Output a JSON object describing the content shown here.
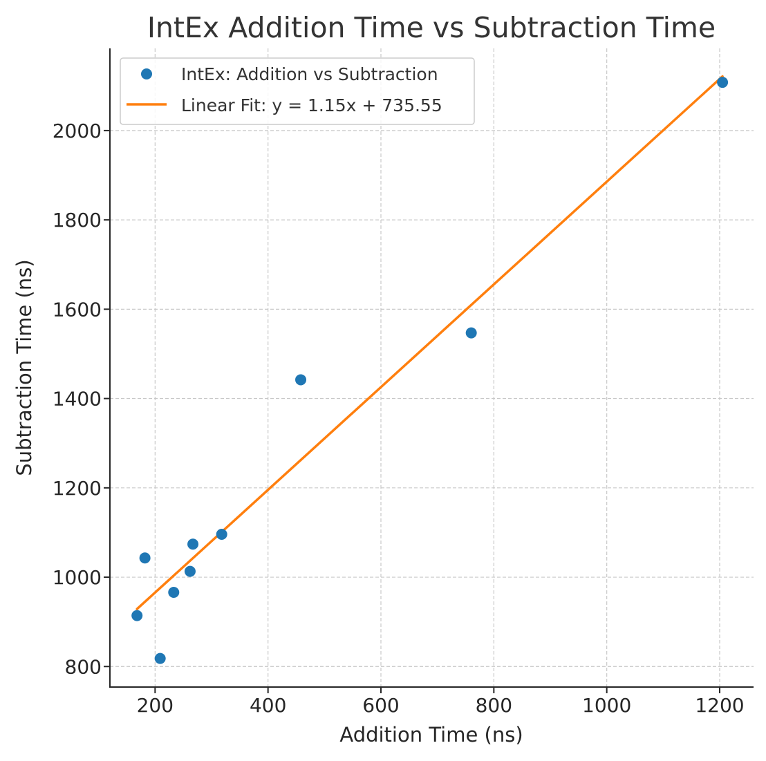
{
  "chart_data": {
    "type": "scatter",
    "title": "IntEx Addition Time vs Subtraction Time",
    "xlabel": "Addition Time (ns)",
    "ylabel": "Subtraction Time (ns)",
    "xlim": [
      120,
      1260
    ],
    "ylim": [
      754,
      2184
    ],
    "xticks": [
      200,
      400,
      600,
      800,
      1000,
      1200
    ],
    "yticks": [
      800,
      1000,
      1200,
      1400,
      1600,
      1800,
      2000
    ],
    "grid": true,
    "legend_position": "top-left",
    "series": [
      {
        "name": "IntEx: Addition vs Subtraction",
        "kind": "scatter",
        "color": "#1f77b4",
        "points": [
          {
            "x": 168,
            "y": 914
          },
          {
            "x": 182,
            "y": 1043
          },
          {
            "x": 209,
            "y": 818
          },
          {
            "x": 233,
            "y": 966
          },
          {
            "x": 262,
            "y": 1013
          },
          {
            "x": 267,
            "y": 1074
          },
          {
            "x": 318,
            "y": 1096
          },
          {
            "x": 458,
            "y": 1442
          },
          {
            "x": 760,
            "y": 1547
          },
          {
            "x": 1205,
            "y": 2108
          }
        ]
      },
      {
        "name": "Linear Fit: y = 1.15x + 735.55",
        "kind": "line",
        "color": "#ff7f0e",
        "slope": 1.15,
        "intercept": 735.55,
        "x_range": [
          168,
          1205
        ]
      }
    ]
  }
}
